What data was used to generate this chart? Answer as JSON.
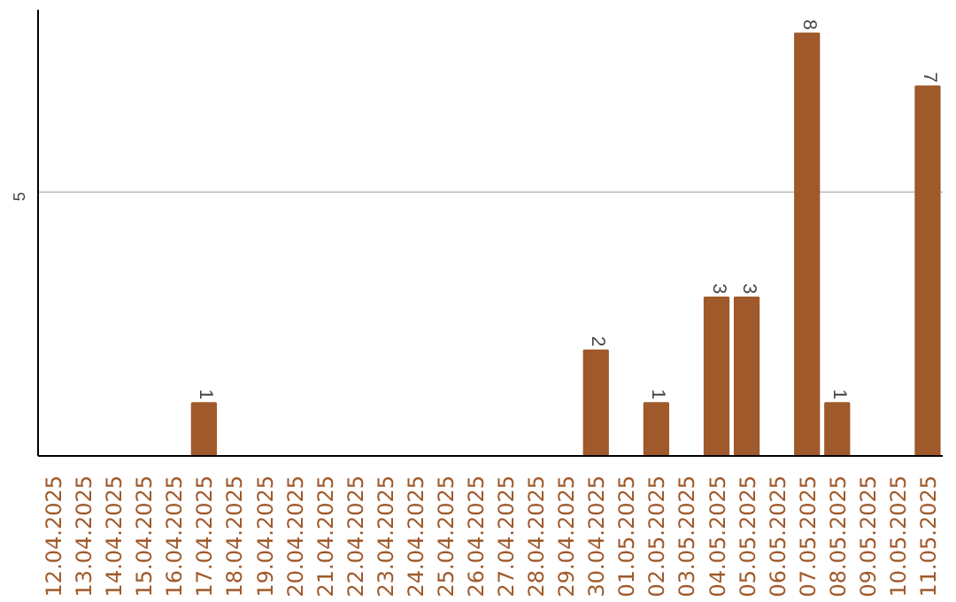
{
  "chart_data": {
    "type": "bar",
    "categories": [
      "12.04.2025",
      "13.04.2025",
      "14.04.2025",
      "15.04.2025",
      "16.04.2025",
      "17.04.2025",
      "18.04.2025",
      "19.04.2025",
      "20.04.2025",
      "21.04.2025",
      "22.04.2025",
      "23.04.2025",
      "24.04.2025",
      "25.04.2025",
      "26.04.2025",
      "27.04.2025",
      "28.04.2025",
      "29.04.2025",
      "30.04.2025",
      "01.05.2025",
      "02.05.2025",
      "03.05.2025",
      "04.05.2025",
      "05.05.2025",
      "06.05.2025",
      "07.05.2025",
      "08.05.2025",
      "09.05.2025",
      "10.05.2025",
      "11.05.2025"
    ],
    "values": [
      0,
      0,
      0,
      0,
      0,
      1,
      0,
      0,
      0,
      0,
      0,
      0,
      0,
      0,
      0,
      0,
      0,
      0,
      2,
      0,
      1,
      0,
      3,
      3,
      0,
      8,
      1,
      0,
      0,
      7
    ],
    "value_labels": [
      null,
      null,
      null,
      null,
      null,
      "1",
      null,
      null,
      null,
      null,
      null,
      null,
      null,
      null,
      null,
      null,
      null,
      null,
      "2",
      null,
      "1",
      null,
      "3",
      "3",
      null,
      "8",
      "1",
      null,
      null,
      "7"
    ],
    "color": "#a0592a",
    "ylim": [
      0,
      8.45
    ],
    "yticks": [
      5
    ],
    "grid": "y"
  }
}
